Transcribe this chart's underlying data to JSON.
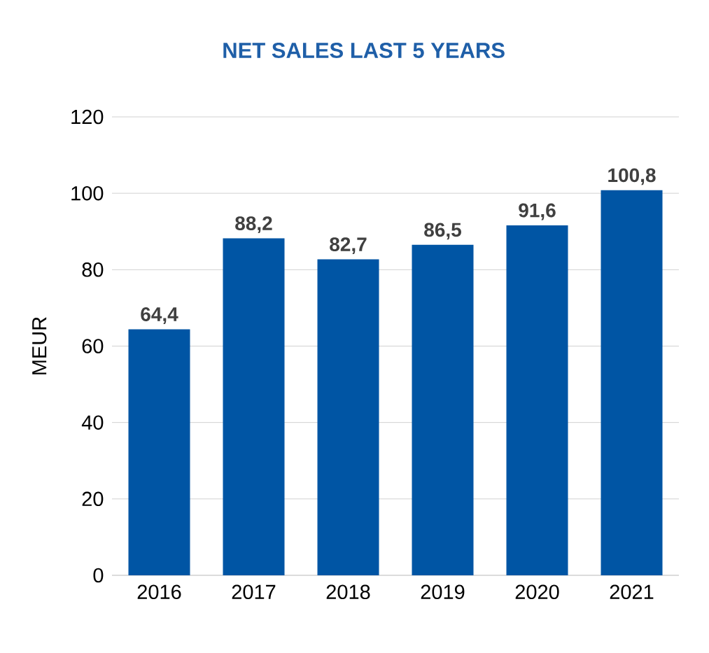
{
  "chart_data": {
    "type": "bar",
    "title": "NET SALES LAST 5 YEARS",
    "ylabel": "MEUR",
    "categories": [
      "2016",
      "2017",
      "2018",
      "2019",
      "2020",
      "2021"
    ],
    "values": [
      64.4,
      88.2,
      82.7,
      86.5,
      91.6,
      100.8
    ],
    "value_labels": [
      "64,4",
      "88,2",
      "82,7",
      "86,5",
      "91,6",
      "100,8"
    ],
    "color": "#0055a4",
    "ylim": [
      0,
      120
    ],
    "yticks": [
      0,
      20,
      40,
      60,
      80,
      100,
      120
    ],
    "grid": "y"
  }
}
